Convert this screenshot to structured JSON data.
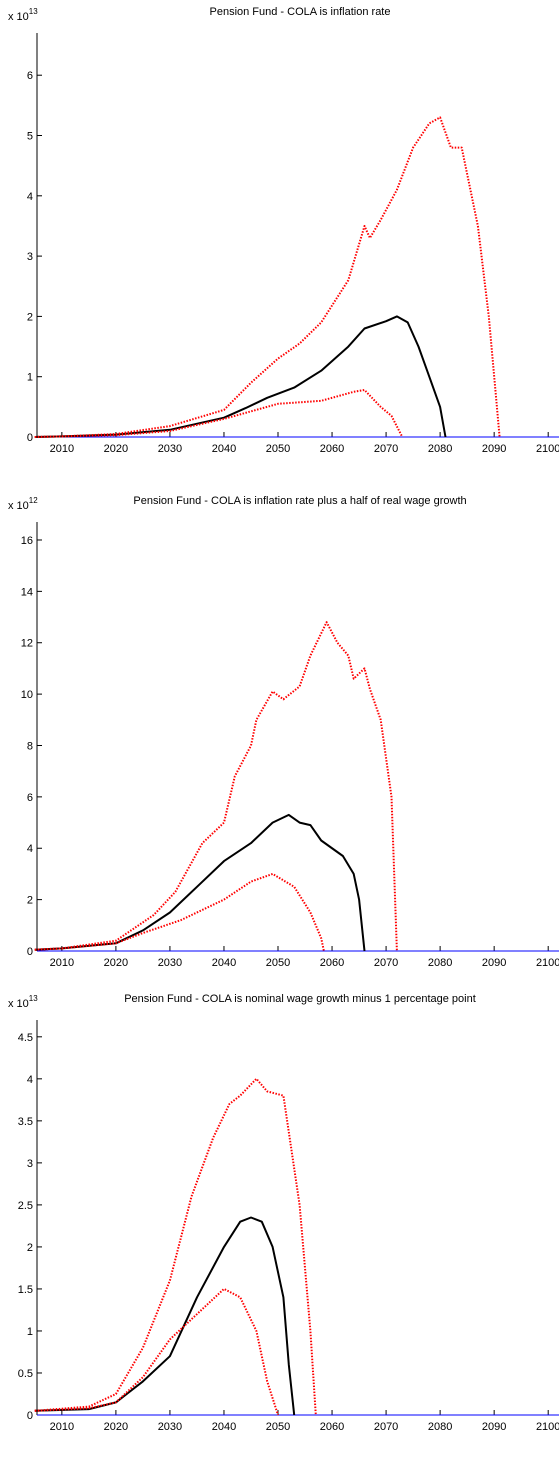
{
  "chart_data": [
    {
      "type": "line",
      "title": "Pension Fund - COLA is inflation rate",
      "y_multiplier": {
        "base": "x 10",
        "exponent": "13"
      },
      "xlim": [
        2005.4,
        2102
      ],
      "xticks": [
        2010,
        2020,
        2030,
        2040,
        2050,
        2060,
        2070,
        2080,
        2090,
        2100
      ],
      "ylim": [
        0,
        6.7
      ],
      "yticks": [
        0,
        1,
        2,
        3,
        4,
        5,
        6
      ],
      "zero_line_color": "#0000ff",
      "series": [
        {
          "color": "#000000",
          "dash": "solid",
          "x": [
            2005,
            2010,
            2020,
            2030,
            2040,
            2044,
            2048,
            2053,
            2058,
            2063,
            2066,
            2070,
            2072,
            2074,
            2076,
            2078,
            2080,
            2081
          ],
          "values": [
            0,
            0.01,
            0.04,
            0.12,
            0.32,
            0.48,
            0.65,
            0.82,
            1.1,
            1.5,
            1.8,
            1.92,
            2.0,
            1.9,
            1.5,
            1.0,
            0.5,
            0
          ]
        },
        {
          "color": "#ff0000",
          "dash": "dotted",
          "x": [
            2005,
            2010,
            2020,
            2030,
            2040,
            2045,
            2050,
            2054,
            2058,
            2063,
            2066,
            2067,
            2069,
            2072,
            2075,
            2078,
            2080,
            2082,
            2084,
            2087,
            2089,
            2091
          ],
          "values": [
            0,
            0.01,
            0.05,
            0.18,
            0.45,
            0.9,
            1.3,
            1.55,
            1.9,
            2.6,
            3.5,
            3.3,
            3.6,
            4.1,
            4.8,
            5.2,
            5.3,
            4.8,
            4.8,
            3.5,
            2.0,
            0
          ]
        },
        {
          "color": "#ff0000",
          "dash": "dotted",
          "x": [
            2005,
            2010,
            2020,
            2030,
            2040,
            2050,
            2058,
            2064,
            2066,
            2069,
            2071,
            2073
          ],
          "values": [
            0,
            0.01,
            0.03,
            0.1,
            0.3,
            0.55,
            0.6,
            0.75,
            0.78,
            0.5,
            0.35,
            0
          ]
        }
      ]
    },
    {
      "type": "line",
      "title": "Pension Fund - COLA is inflation rate plus a half of real wage growth",
      "y_multiplier": {
        "base": "x 10",
        "exponent": "12"
      },
      "xlim": [
        2005.4,
        2102
      ],
      "xticks": [
        2010,
        2020,
        2030,
        2040,
        2050,
        2060,
        2070,
        2080,
        2090,
        2100
      ],
      "ylim": [
        0,
        16.7
      ],
      "yticks": [
        0,
        2,
        4,
        6,
        8,
        10,
        12,
        14,
        16
      ],
      "zero_line_color": "#0000ff",
      "series": [
        {
          "color": "#000000",
          "dash": "solid",
          "x": [
            2005,
            2010,
            2020,
            2025,
            2030,
            2035,
            2040,
            2045,
            2049,
            2052,
            2054,
            2056,
            2058,
            2062,
            2064,
            2065,
            2066
          ],
          "values": [
            0.05,
            0.1,
            0.3,
            0.8,
            1.5,
            2.5,
            3.5,
            4.2,
            5.0,
            5.3,
            5.0,
            4.9,
            4.3,
            3.7,
            3.0,
            2.0,
            0
          ]
        },
        {
          "color": "#ff0000",
          "dash": "dotted",
          "x": [
            2005,
            2010,
            2020,
            2027,
            2031,
            2036,
            2040,
            2042,
            2045,
            2046,
            2049,
            2051,
            2054,
            2056,
            2059,
            2061,
            2063,
            2064,
            2066,
            2067,
            2069,
            2071,
            2072
          ],
          "values": [
            0.05,
            0.1,
            0.4,
            1.4,
            2.3,
            4.2,
            5.0,
            6.8,
            8.0,
            9.0,
            10.1,
            9.8,
            10.3,
            11.5,
            12.8,
            12.0,
            11.5,
            10.6,
            11.0,
            10.2,
            9.0,
            6.0,
            0
          ]
        },
        {
          "color": "#ff0000",
          "dash": "dotted",
          "x": [
            2005,
            2010,
            2020,
            2025,
            2032,
            2040,
            2045,
            2049,
            2053,
            2056,
            2058,
            2058.5
          ],
          "values": [
            0.05,
            0.1,
            0.3,
            0.7,
            1.2,
            2.0,
            2.7,
            3.0,
            2.5,
            1.5,
            0.5,
            0
          ]
        }
      ]
    },
    {
      "type": "line",
      "title": "Pension Fund - COLA is nominal wage growth minus 1 percentage point",
      "y_multiplier": {
        "base": "x 10",
        "exponent": "13"
      },
      "xlim": [
        2005.4,
        2102
      ],
      "xticks": [
        2010,
        2020,
        2030,
        2040,
        2050,
        2060,
        2070,
        2080,
        2090,
        2100
      ],
      "ylim": [
        0,
        4.7
      ],
      "yticks": [
        0,
        0.5,
        1,
        1.5,
        2,
        2.5,
        3,
        3.5,
        4,
        4.5
      ],
      "zero_line_color": "#0000ff",
      "series": [
        {
          "color": "#000000",
          "dash": "solid",
          "x": [
            2005,
            2015,
            2020,
            2025,
            2030,
            2035,
            2040,
            2043,
            2045,
            2047,
            2049,
            2051,
            2052,
            2053
          ],
          "values": [
            0.05,
            0.07,
            0.15,
            0.4,
            0.7,
            1.4,
            2.0,
            2.3,
            2.35,
            2.3,
            2.0,
            1.4,
            0.6,
            0
          ]
        },
        {
          "color": "#ff0000",
          "dash": "dotted",
          "x": [
            2005,
            2015,
            2020,
            2025,
            2030,
            2034,
            2038,
            2041,
            2043,
            2046,
            2048,
            2051,
            2054,
            2056,
            2057
          ],
          "values": [
            0.05,
            0.1,
            0.25,
            0.8,
            1.6,
            2.6,
            3.3,
            3.7,
            3.8,
            4.0,
            3.85,
            3.8,
            2.5,
            1.0,
            0
          ]
        },
        {
          "color": "#ff0000",
          "dash": "dotted",
          "x": [
            2005,
            2015,
            2020,
            2025,
            2030,
            2035,
            2040,
            2043,
            2046,
            2048,
            2050
          ],
          "values": [
            0.05,
            0.08,
            0.15,
            0.45,
            0.9,
            1.2,
            1.5,
            1.4,
            1.0,
            0.4,
            0
          ]
        }
      ]
    }
  ]
}
